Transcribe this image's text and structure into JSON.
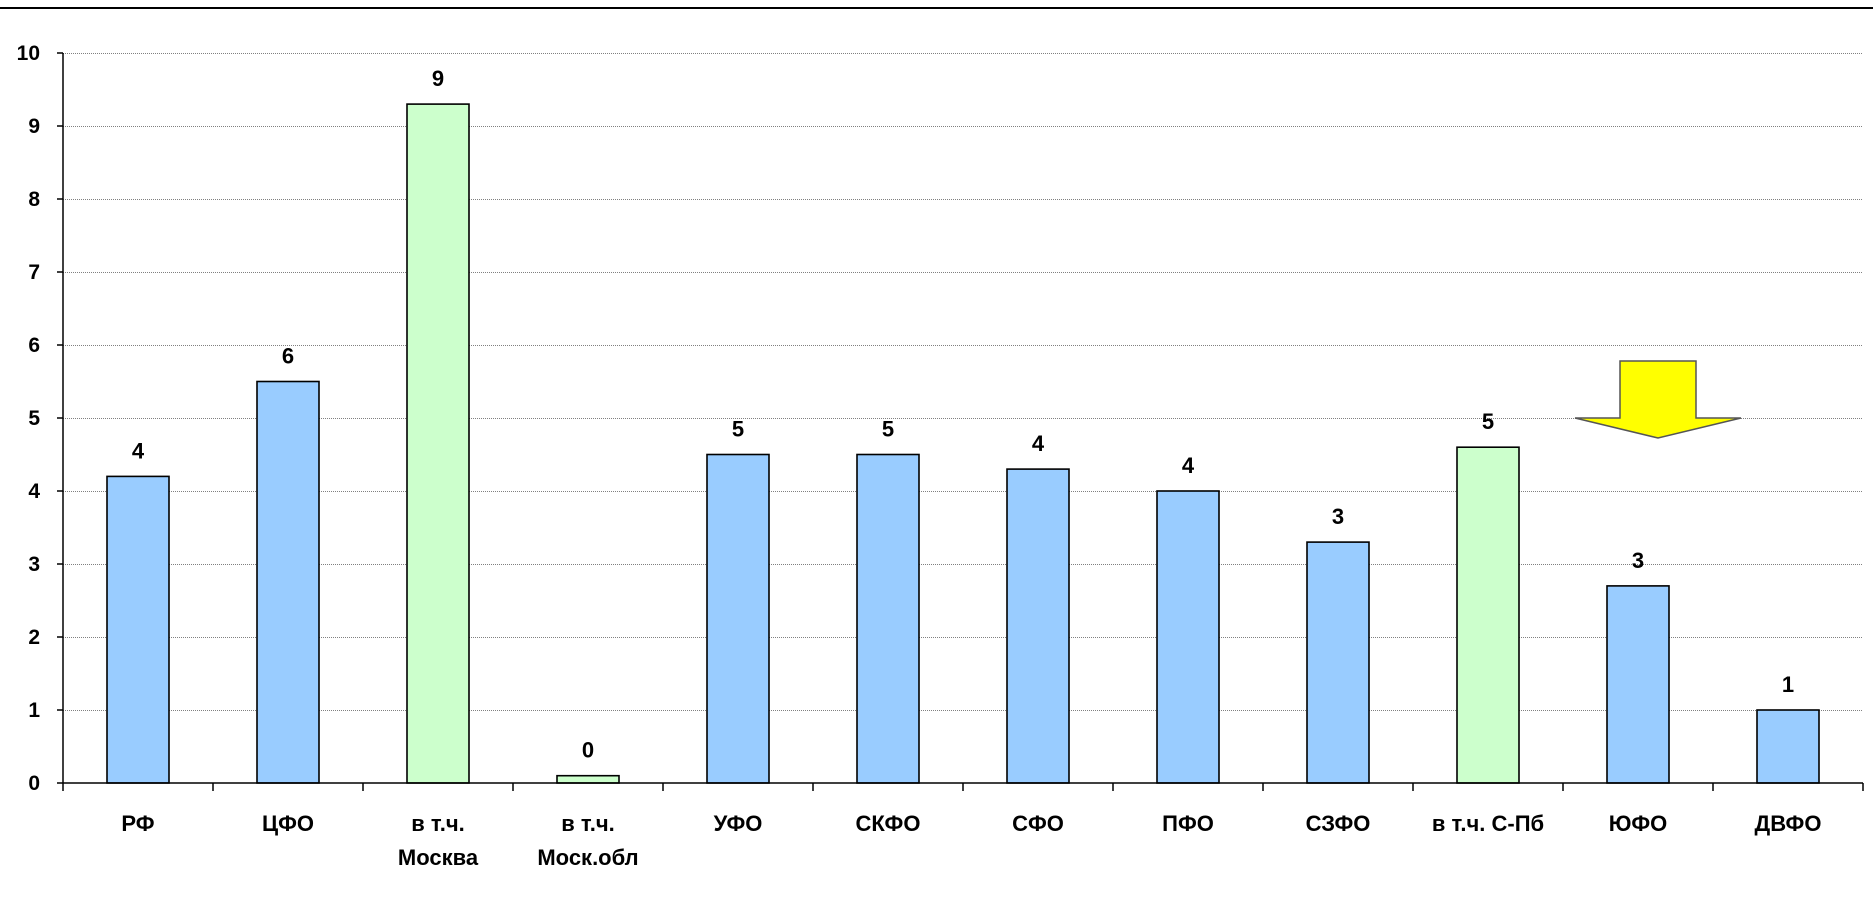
{
  "chart_data": {
    "type": "bar",
    "categories": [
      [
        "РФ"
      ],
      [
        "ЦФО"
      ],
      [
        "в т.ч.",
        "Москва"
      ],
      [
        "в т.ч.",
        "Моск.обл"
      ],
      [
        "УФО"
      ],
      [
        "СКФО"
      ],
      [
        "СФО"
      ],
      [
        "ПФО"
      ],
      [
        "СЗФО"
      ],
      [
        "в т.ч. С-Пб"
      ],
      [
        "ЮФО"
      ],
      [
        "ДВФО"
      ]
    ],
    "values": [
      4.2,
      5.5,
      9.3,
      0.1,
      4.5,
      4.5,
      4.3,
      4.0,
      3.3,
      4.6,
      2.7,
      1.0
    ],
    "data_labels": [
      "4",
      "6",
      "9",
      "0",
      "5",
      "5",
      "4",
      "4",
      "3",
      "5",
      "3",
      "1"
    ],
    "bar_colors": [
      "#99ccff",
      "#99ccff",
      "#ccffcc",
      "#ccffcc",
      "#99ccff",
      "#99ccff",
      "#99ccff",
      "#99ccff",
      "#99ccff",
      "#ccffcc",
      "#99ccff",
      "#99ccff"
    ],
    "ylim": [
      0,
      10
    ],
    "yticks": [
      "0",
      "1",
      "2",
      "3",
      "4",
      "5",
      "6",
      "7",
      "8",
      "9",
      "10"
    ],
    "grid": true,
    "grid_style": "dotted",
    "legend": "none",
    "title": "",
    "xlabel": "",
    "ylabel": ""
  },
  "colors": {
    "bar_border": "#000000",
    "gridline": "#808080",
    "arrow_fill": "#ffff00",
    "arrow_stroke": "#555555",
    "top_rule": "#000000"
  },
  "annotation": {
    "icon": "down-arrow-icon",
    "target_category_index": 10
  }
}
